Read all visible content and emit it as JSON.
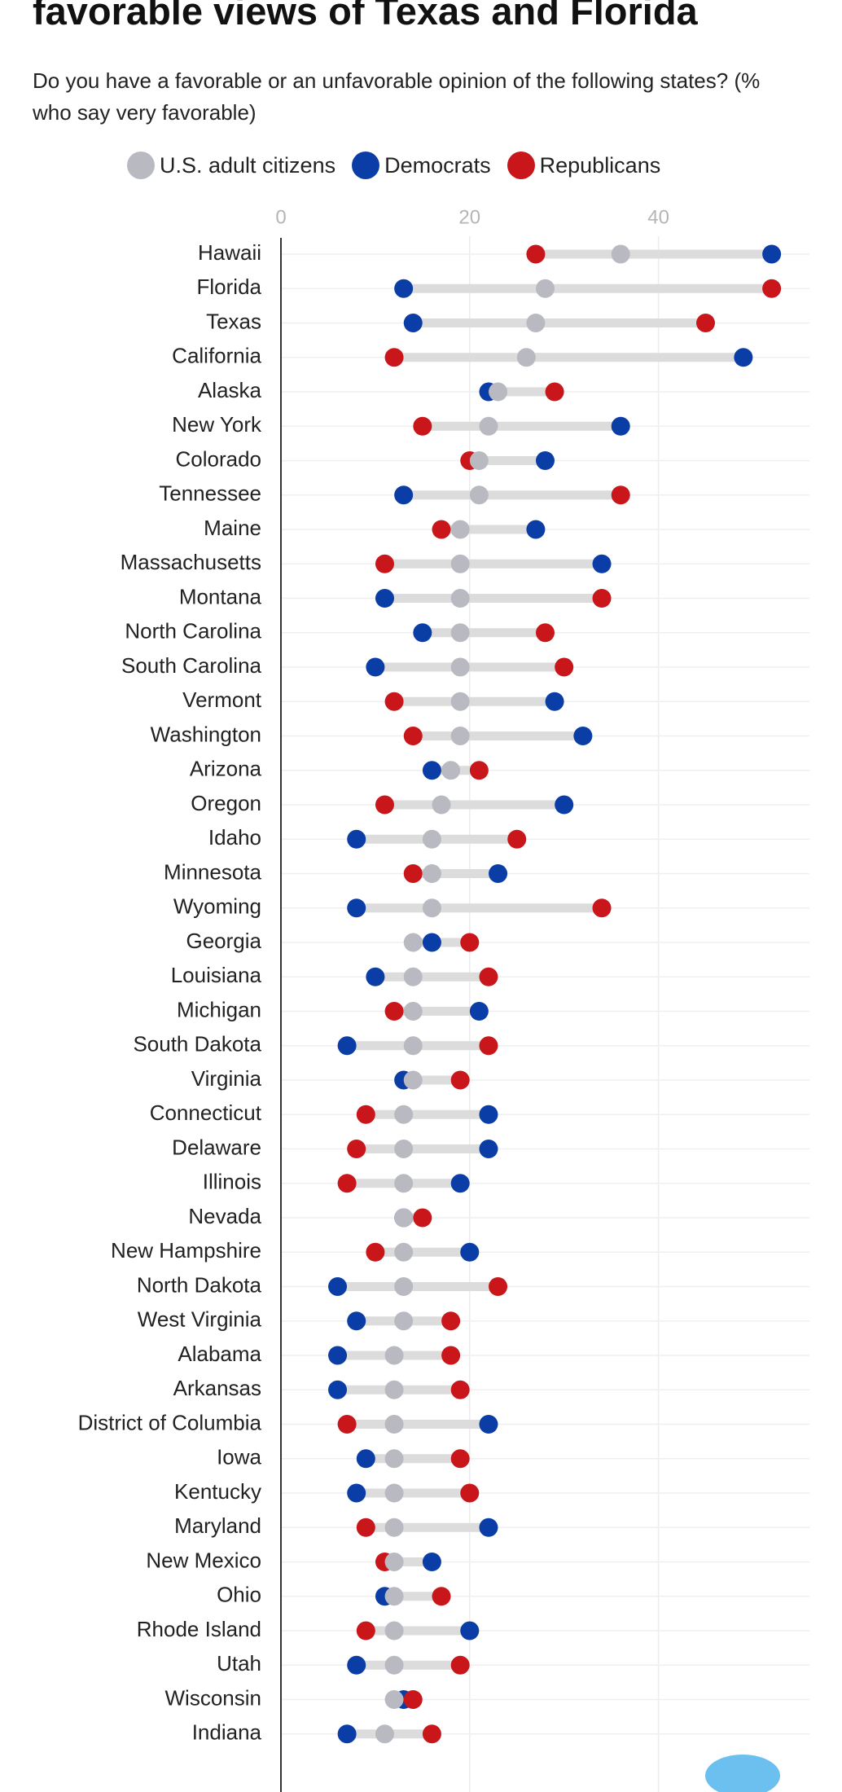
{
  "chart_data": {
    "type": "dumbbell",
    "title": "favorable views of Texas and Florida",
    "subtitle": "Do you have a favorable or an unfavorable opinion of the following states? (% who say very favorable)",
    "categories": [
      "Hawaii",
      "Florida",
      "Texas",
      "California",
      "Alaska",
      "New York",
      "Colorado",
      "Tennessee",
      "Maine",
      "Massachusetts",
      "Montana",
      "North Carolina",
      "South Carolina",
      "Vermont",
      "Washington",
      "Arizona",
      "Oregon",
      "Idaho",
      "Minnesota",
      "Wyoming",
      "Georgia",
      "Louisiana",
      "Michigan",
      "South Dakota",
      "Virginia",
      "Connecticut",
      "Delaware",
      "Illinois",
      "Nevada",
      "New Hampshire",
      "North Dakota",
      "West Virginia",
      "Alabama",
      "Arkansas",
      "District of Columbia",
      "Iowa",
      "Kentucky",
      "Maryland",
      "New Mexico",
      "Ohio",
      "Rhode Island",
      "Utah",
      "Wisconsin",
      "Indiana"
    ],
    "series": [
      {
        "name": "U.S. adult citizens",
        "color": "#b9bac1",
        "values": [
          36,
          28,
          27,
          26,
          23,
          22,
          21,
          21,
          19,
          19,
          19,
          19,
          19,
          19,
          19,
          18,
          17,
          16,
          16,
          16,
          14,
          14,
          14,
          14,
          14,
          13,
          13,
          13,
          13,
          13,
          13,
          13,
          12,
          12,
          12,
          12,
          12,
          12,
          12,
          12,
          12,
          12,
          12,
          11
        ]
      },
      {
        "name": "Democrats",
        "color": "#0b3da6",
        "values": [
          52,
          13,
          14,
          49,
          22,
          36,
          28,
          13,
          27,
          34,
          11,
          15,
          10,
          29,
          32,
          16,
          30,
          8,
          23,
          8,
          16,
          10,
          21,
          7,
          13,
          22,
          22,
          19,
          13,
          20,
          6,
          8,
          6,
          6,
          22,
          9,
          8,
          22,
          16,
          11,
          20,
          8,
          13,
          7
        ]
      },
      {
        "name": "Republicans",
        "color": "#c8161b",
        "values": [
          27,
          52,
          45,
          12,
          29,
          15,
          20,
          36,
          17,
          11,
          34,
          28,
          30,
          12,
          14,
          21,
          11,
          25,
          14,
          34,
          20,
          22,
          12,
          22,
          19,
          9,
          8,
          7,
          15,
          10,
          23,
          18,
          18,
          19,
          7,
          19,
          20,
          9,
          11,
          17,
          9,
          19,
          14,
          16
        ]
      }
    ],
    "xlim": [
      0,
      56
    ],
    "xticks": [
      0,
      20,
      40
    ],
    "grid": true
  }
}
